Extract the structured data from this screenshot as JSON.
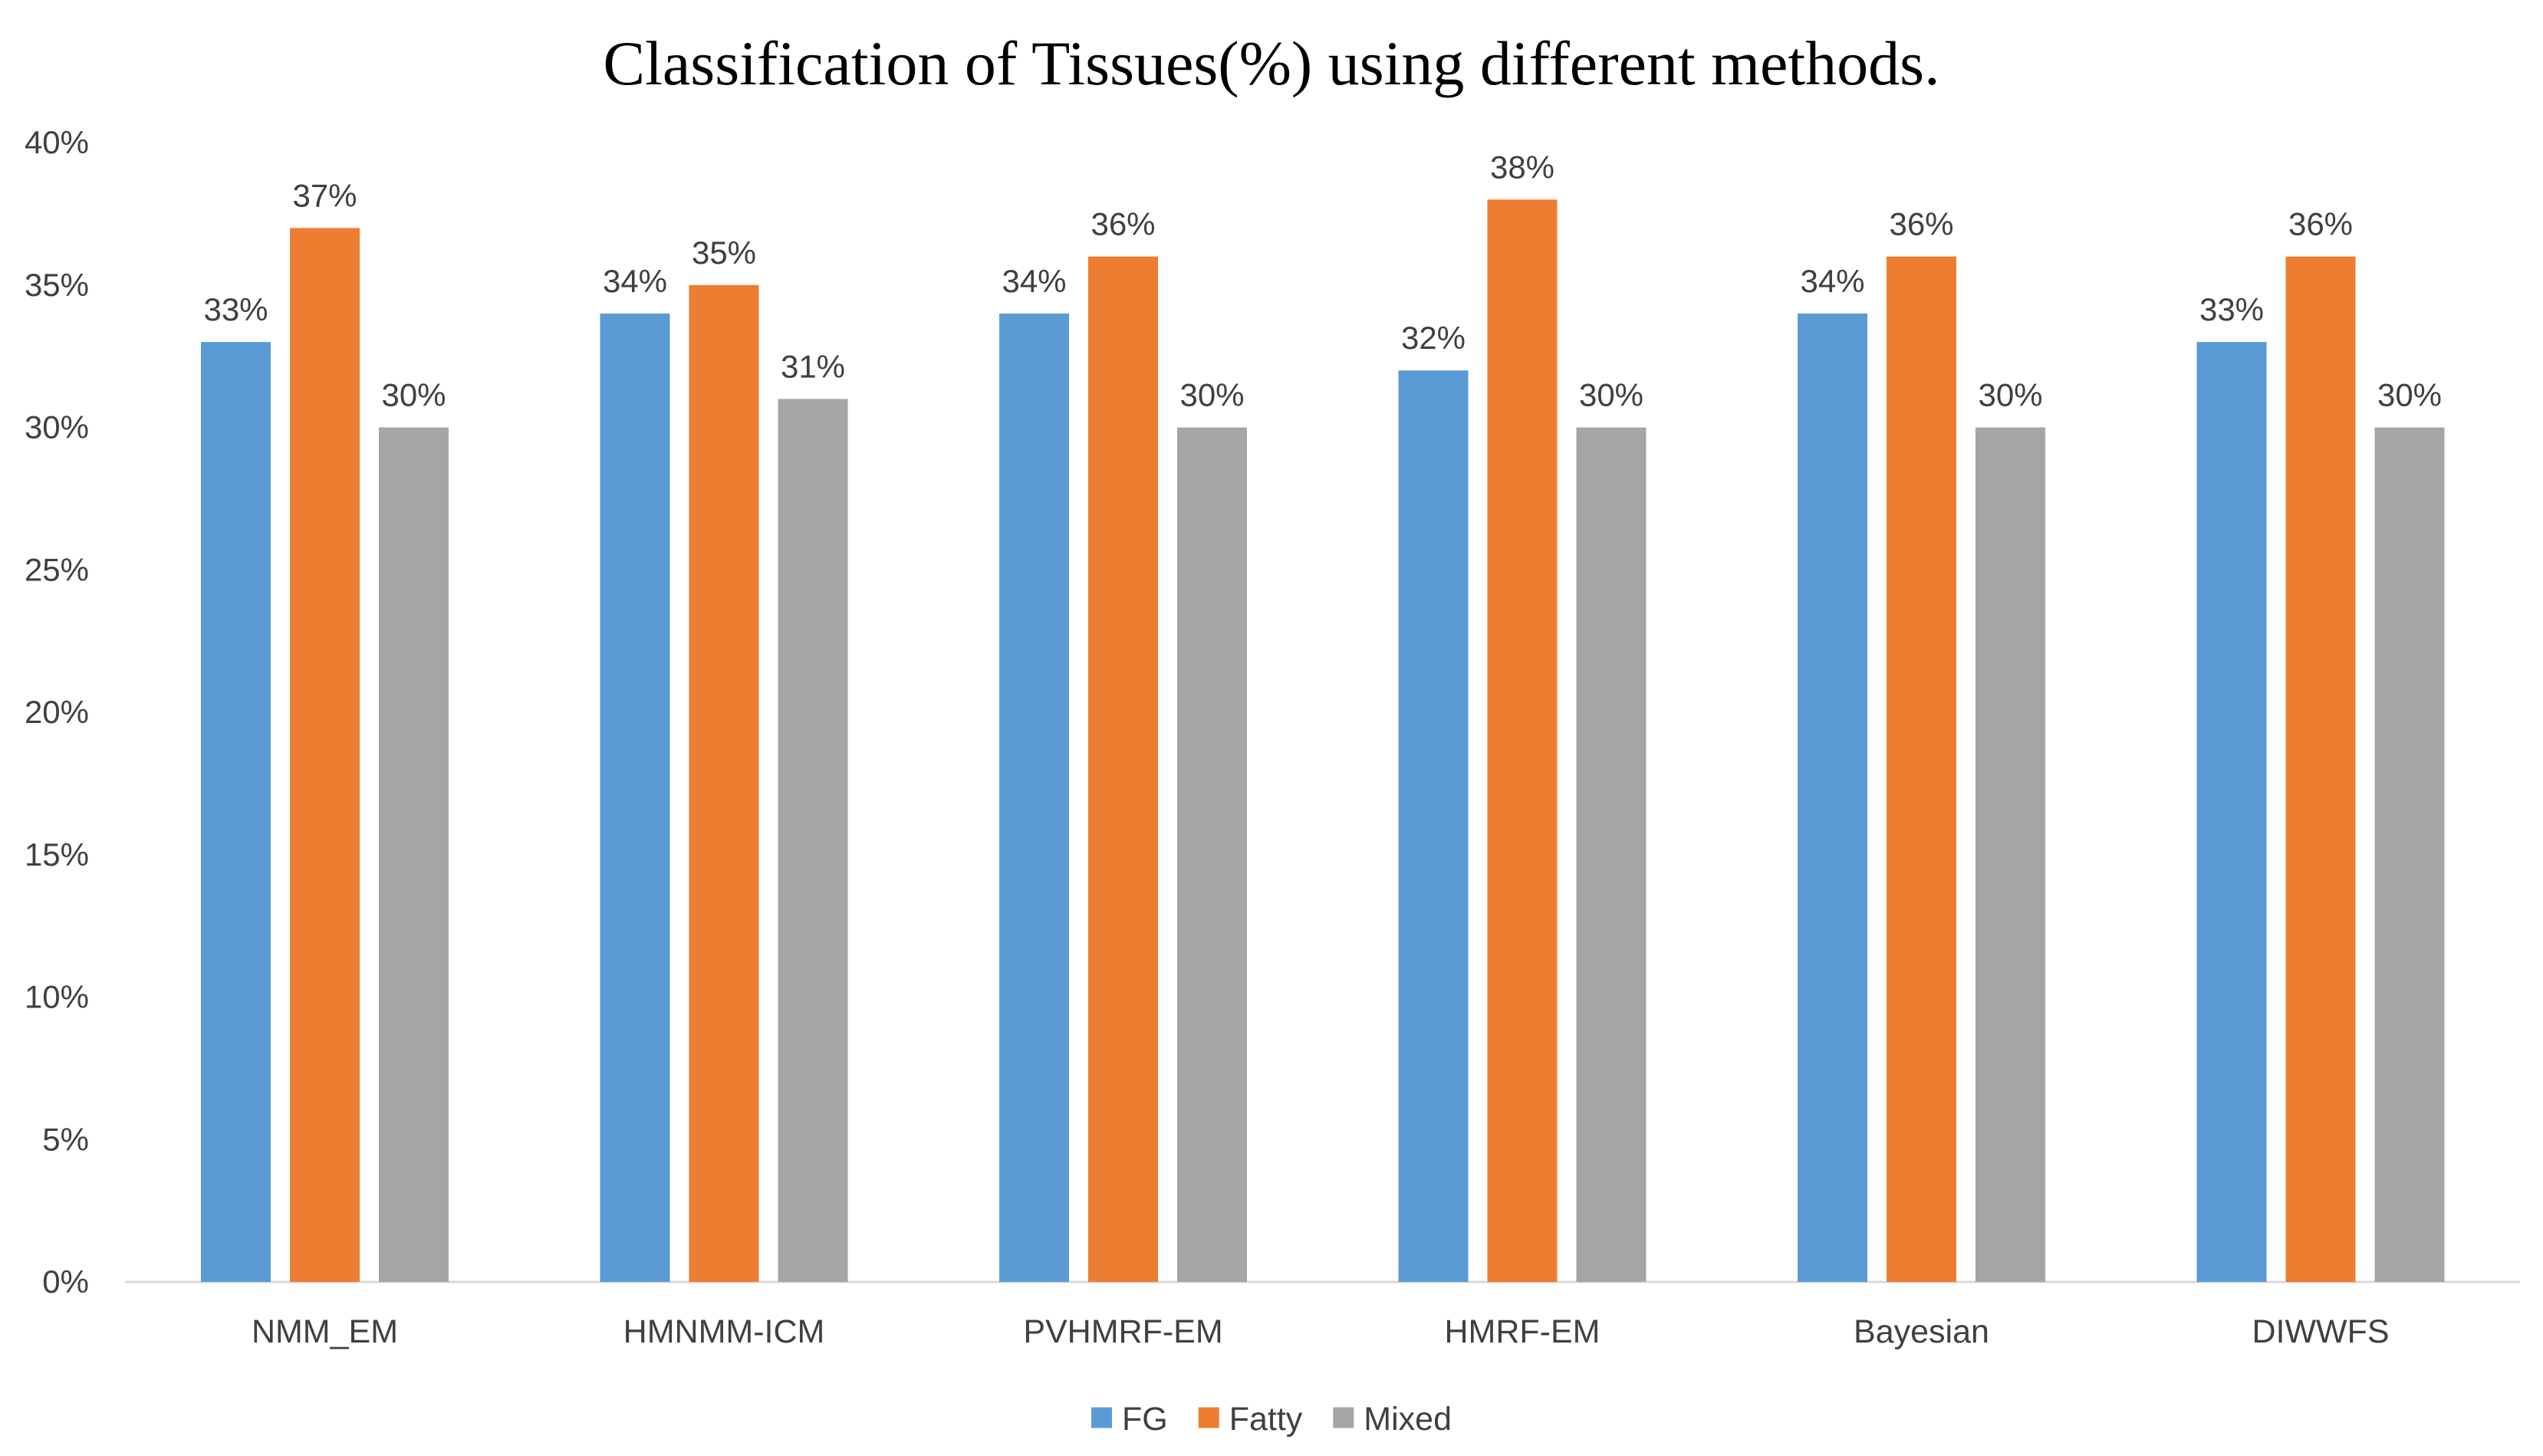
{
  "chart_data": {
    "type": "bar",
    "title": "Classification of Tissues(%) using different methods.",
    "xlabel": "",
    "ylabel": "",
    "ylim": [
      0,
      40
    ],
    "yticks": [
      0,
      5,
      10,
      15,
      20,
      25,
      30,
      35,
      40
    ],
    "y_tick_labels": [
      "0%",
      "5%",
      "10%",
      "15%",
      "20%",
      "25%",
      "30%",
      "35%",
      "40%"
    ],
    "value_suffix": "%",
    "grid": false,
    "legend_position": "bottom-center",
    "categories": [
      "NMM_EM",
      "HMNMM-ICM",
      "PVHMRF-EM",
      "HMRF-EM",
      "Bayesian",
      "DIWWFS"
    ],
    "series": [
      {
        "name": "FG",
        "color": "#5B9BD5",
        "values": [
          33,
          34,
          34,
          32,
          34,
          33
        ]
      },
      {
        "name": "Fatty",
        "color": "#ED7D31",
        "values": [
          37,
          35,
          36,
          38,
          36,
          36
        ]
      },
      {
        "name": "Mixed",
        "color": "#A5A5A5",
        "values": [
          30,
          31,
          30,
          30,
          30,
          30
        ]
      }
    ],
    "axis_color": "#D9D9D9"
  }
}
